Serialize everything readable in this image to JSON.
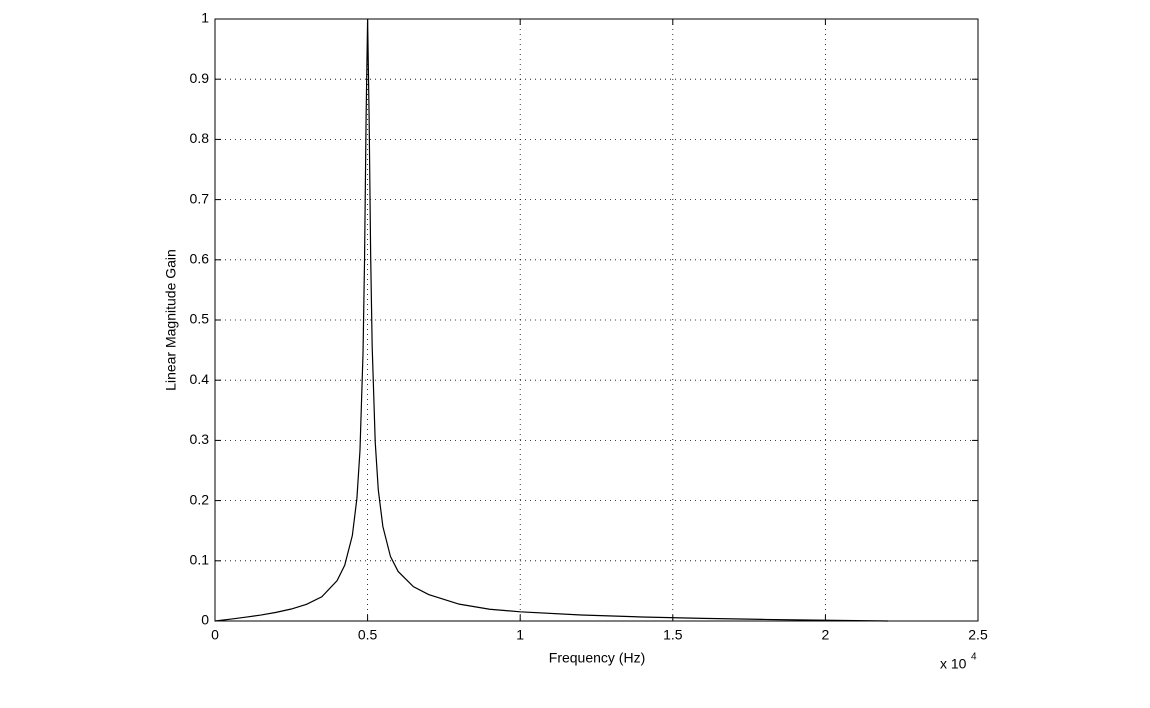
{
  "chart_data": {
    "type": "line",
    "x_label": "Frequency (Hz)",
    "y_label": "Linear Magnitude Gain",
    "x_scale_label": "x 10",
    "x_scale_exponent": "4",
    "x": [
      0,
      500,
      1000,
      1500,
      2000,
      2500,
      3000,
      3500,
      4000,
      4250,
      4500,
      4650,
      4750,
      4850,
      4900,
      4950,
      5000,
      5050,
      5100,
      5150,
      5250,
      5350,
      5500,
      5750,
      6000,
      6500,
      7000,
      8000,
      9000,
      10000,
      12000,
      14000,
      16000,
      18000,
      20000,
      22050
    ],
    "series": [
      {
        "color": "#000000",
        "values": [
          0,
          0.003,
          0.0063,
          0.0099,
          0.0143,
          0.0199,
          0.0277,
          0.0402,
          0.067,
          0.0925,
          0.142,
          0.204,
          0.283,
          0.445,
          0.6,
          0.833,
          1,
          0.836,
          0.608,
          0.456,
          0.297,
          0.218,
          0.157,
          0.107,
          0.0823,
          0.057,
          0.044,
          0.028,
          0.0195,
          0.0153,
          0.01,
          0.0067,
          0.0044,
          0.0026,
          0.0012,
          0
        ]
      }
    ],
    "xlim": [
      0,
      25000
    ],
    "ylim": [
      0,
      1
    ],
    "xticks": [
      0,
      {
        "value": 5000,
        "label": "0.5"
      },
      {
        "value": 10000,
        "label": "1"
      },
      {
        "value": 15000,
        "label": "1.5"
      },
      {
        "value": 20000,
        "label": "2"
      },
      {
        "value": 25000,
        "label": "2.5"
      }
    ],
    "yticks": [
      0,
      0.1,
      0.2,
      0.3,
      0.4,
      0.5,
      0.6,
      0.7,
      0.8,
      0.9,
      1
    ],
    "grid": true
  }
}
